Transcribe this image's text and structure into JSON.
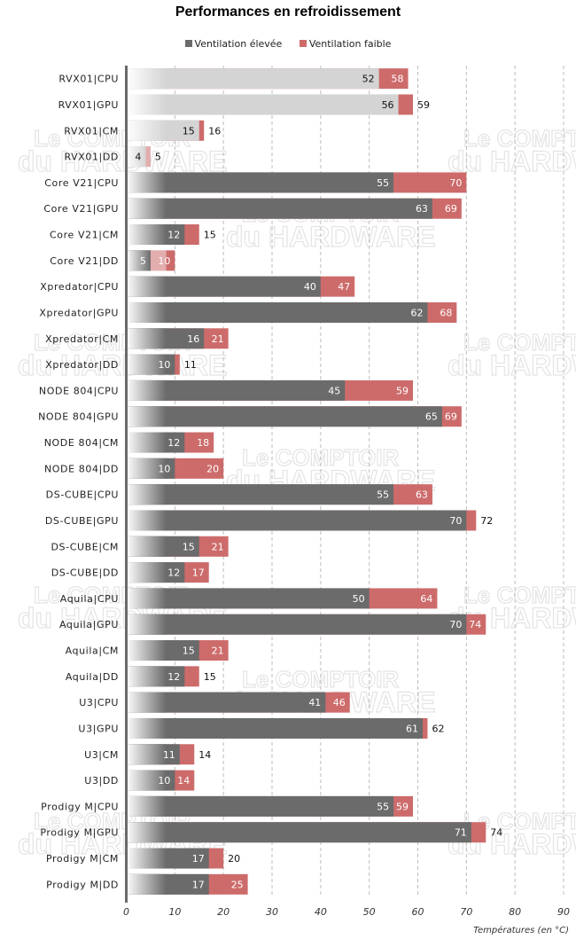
{
  "chart_data": {
    "type": "bar",
    "orientation": "horizontal",
    "stacked_overlay": true,
    "title": "Performances en refroidissement",
    "xlabel": "Températures (en °C)",
    "ylabel": "",
    "xlim": [
      0,
      90
    ],
    "x_ticks": [
      "0",
      "10",
      "20",
      "30",
      "40",
      "50",
      "60",
      "70",
      "80",
      "90"
    ],
    "grid": "vertical-dashed",
    "legend_position": "top-center",
    "watermark": "Le COMPTOIR du HARDWARE",
    "categories": [
      "RVX01|CPU",
      "RVX01|GPU",
      "RVX01|CM",
      "RVX01|DD",
      "Core V21|CPU",
      "Core V21|GPU",
      "Core V21|CM",
      "Core V21|DD",
      "Xpredator|CPU",
      "Xpredator|GPU",
      "Xpredator|CM",
      "Xpredator|DD",
      "NODE 804|CPU",
      "NODE 804|GPU",
      "NODE 804|CM",
      "NODE 804|DD",
      "DS-CUBE|CPU",
      "DS-CUBE|GPU",
      "DS-CUBE|CM",
      "DS-CUBE|DD",
      "Aquila|CPU",
      "Aquila|GPU",
      "Aquila|CM",
      "Aquila|DD",
      "U3|CPU",
      "U3|GPU",
      "U3|CM",
      "U3|DD",
      "Prodigy M|CPU",
      "Prodigy M|GPU",
      "Prodigy M|CM",
      "Prodigy M|DD"
    ],
    "highlighted_rows": [
      "RVX01|CPU",
      "RVX01|GPU",
      "RVX01|CM",
      "RVX01|DD"
    ],
    "series": [
      {
        "name": "Ventilation élevée",
        "color": "#6b6b6b",
        "highlight_color": "#d4d4d4",
        "values": [
          52,
          56,
          15,
          4,
          55,
          63,
          12,
          5,
          40,
          62,
          16,
          10,
          45,
          65,
          12,
          10,
          55,
          70,
          15,
          12,
          50,
          70,
          15,
          12,
          41,
          61,
          11,
          10,
          55,
          71,
          17,
          17
        ]
      },
      {
        "name": "Ventilation faible",
        "color": "#cd6b6b",
        "values": [
          58,
          59,
          16,
          5,
          70,
          69,
          15,
          10,
          47,
          68,
          21,
          11,
          59,
          69,
          18,
          20,
          63,
          72,
          21,
          17,
          64,
          74,
          21,
          15,
          46,
          62,
          14,
          14,
          59,
          74,
          20,
          25
        ]
      }
    ]
  }
}
